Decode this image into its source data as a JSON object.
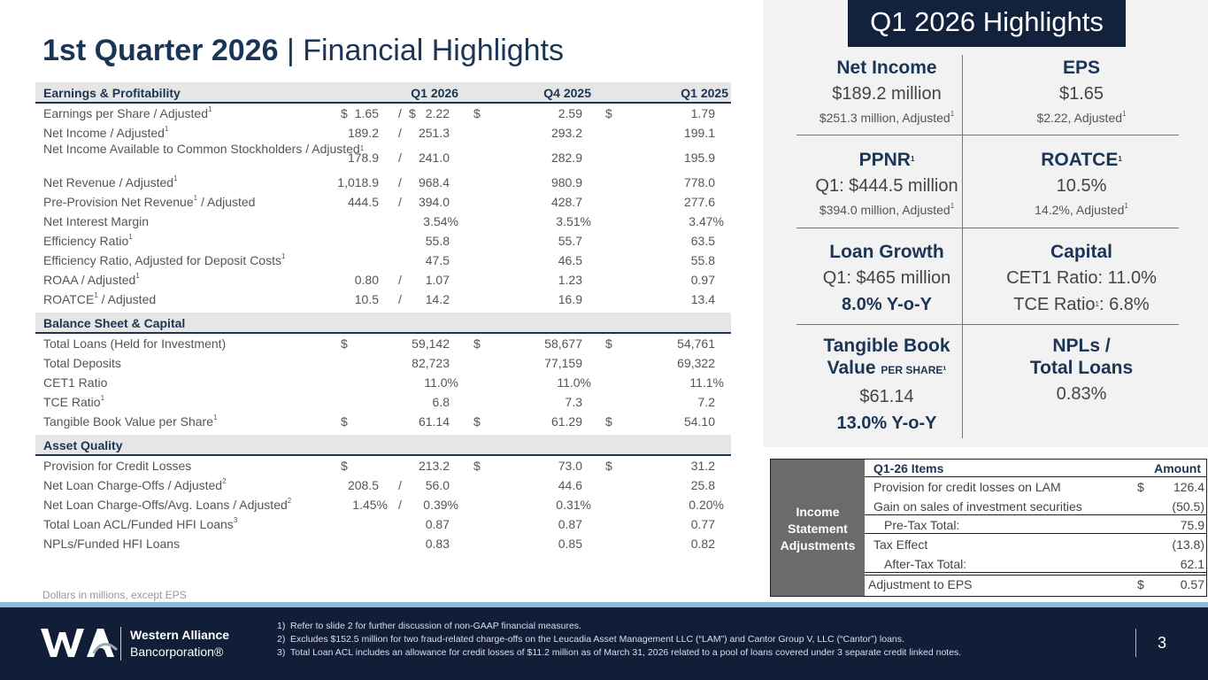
{
  "title": {
    "bold": "1st Quarter 2026",
    "rest": " | Financial Highlights"
  },
  "columns": [
    "Q1 2026",
    "Q4 2025",
    "Q1 2025"
  ],
  "sections": [
    {
      "name": "Earnings & Profitability",
      "rows": [
        {
          "label": "Earnings per Share / Adjusted",
          "sup": "1",
          "d1": "$",
          "v1": "1.65",
          "sl": "/",
          "d2": "$",
          "v2": "2.22",
          "d3": "$",
          "v3": "2.59",
          "d4": "$",
          "v4": "1.79"
        },
        {
          "label": "Net Income / Adjusted",
          "sup": "1",
          "v1": "189.2",
          "sl": "/",
          "v2": "251.3",
          "v3": "293.2",
          "v4": "199.1"
        },
        {
          "label": "Net Income Available to Common Stockholders / Adjusted",
          "sup": "1",
          "tall": true,
          "v1": "178.9",
          "sl": "/",
          "v2": "241.0",
          "v3": "282.9",
          "v4": "195.9"
        },
        {
          "label": "Net Revenue / Adjusted",
          "sup": "1",
          "v1": "1,018.9",
          "sl": "/",
          "v2": "968.4",
          "v3": "980.9",
          "v4": "778.0"
        },
        {
          "label": "Pre-Provision Net Revenue",
          "sup": "1",
          "label2": " / Adjusted",
          "v1": "444.5",
          "sl": "/",
          "v2": "394.0",
          "v3": "428.7",
          "v4": "277.6"
        },
        {
          "label": "Net Interest Margin",
          "v2": "3.54%",
          "v3": "3.51%",
          "v4": "3.47%"
        },
        {
          "label": "Efficiency Ratio",
          "sup": "1",
          "v2": "55.8",
          "v3": "55.7",
          "v4": "63.5"
        },
        {
          "label": "Efficiency Ratio, Adjusted for Deposit Costs",
          "sup": "1",
          "v2": "47.5",
          "v3": "46.5",
          "v4": "55.8"
        },
        {
          "label": "ROAA / Adjusted",
          "sup": "1",
          "v1": "0.80",
          "sl": "/",
          "v2": "1.07",
          "v3": "1.23",
          "v4": "0.97"
        },
        {
          "label": "ROATCE",
          "sup": "1",
          "label2": " / Adjusted",
          "v1": "10.5",
          "sl": "/",
          "v2": "14.2",
          "v3": "16.9",
          "v4": "13.4"
        }
      ]
    },
    {
      "name": "Balance Sheet & Capital",
      "rows": [
        {
          "label": "Total Loans (Held for Investment)",
          "d1": "$",
          "v2": "59,142",
          "d3": "$",
          "v3": "58,677",
          "d4": "$",
          "v4": "54,761"
        },
        {
          "label": "Total Deposits",
          "v2": "82,723",
          "v3": "77,159",
          "v4": "69,322"
        },
        {
          "label": "CET1 Ratio",
          "v2": "11.0%",
          "v3": "11.0%",
          "v4": "11.1%"
        },
        {
          "label": "TCE Ratio",
          "sup": "1",
          "v2": "6.8",
          "v3": "7.3",
          "v4": "7.2"
        },
        {
          "label": "Tangible Book Value per Share",
          "sup": "1",
          "d1": "$",
          "v2": "61.14",
          "d3": "$",
          "v3": "61.29",
          "d4": "$",
          "v4": "54.10"
        }
      ]
    },
    {
      "name": "Asset Quality",
      "rows": [
        {
          "label": "Provision for Credit Losses",
          "d1": "$",
          "v2": "213.2",
          "d3": "$",
          "v3": "73.0",
          "d4": "$",
          "v4": "31.2"
        },
        {
          "label": "Net Loan Charge-Offs / Adjusted",
          "sup": "2",
          "v1": "208.5",
          "sl": "/",
          "v2": "56.0",
          "v3": "44.6",
          "v4": "25.8"
        },
        {
          "label": "Net Loan Charge-Offs/Avg. Loans / Adjusted",
          "sup": "2",
          "v1": "1.45%",
          "sl": "/",
          "v2": "0.39%",
          "v3": "0.31%",
          "v4": "0.20%"
        },
        {
          "label": "Total Loan ACL/Funded HFI Loans",
          "sup": "3",
          "v2": "0.87",
          "v3": "0.87",
          "v4": "0.77"
        },
        {
          "label": "NPLs/Funded HFI Loans",
          "v2": "0.83",
          "v3": "0.85",
          "v4": "0.82"
        }
      ]
    }
  ],
  "note": "Dollars in millions, except EPS",
  "highlights": {
    "title": "Q1 2026 Highlights",
    "cells": [
      {
        "h": "Net Income",
        "b": "$189.2 million",
        "s": "$251.3 million, Adjusted",
        "ssup": "1"
      },
      {
        "h": "EPS",
        "b": "$1.65",
        "s": "$2.22, Adjusted",
        "ssup": "1"
      },
      {
        "h": "PPNR",
        "hsup": "1",
        "b": "Q1: $444.5 million",
        "s": "$394.0 million, Adjusted",
        "ssup": "1"
      },
      {
        "h": "ROATCE",
        "hsup": "1",
        "b": "10.5%",
        "s": "14.2%, Adjusted",
        "ssup": "1"
      },
      {
        "h": "Loan Growth",
        "b": "Q1: $465 million",
        "g": "8.0%  Y-o-Y"
      },
      {
        "h": "Capital",
        "b": "CET1 Ratio: 11.0%",
        "b2": "TCE Ratio",
        "b2sup": "1",
        "b2rest": ": 6.8%"
      },
      {
        "h": "Tangible Book",
        "h2": "Value ",
        "h2sm": "PER SHARE¹",
        "b": "$61.14",
        "g": "13.0%  Y-o-Y"
      },
      {
        "h": "NPLs /",
        "h2": "Total Loans",
        "b": "0.83%"
      }
    ]
  },
  "adjustments": {
    "side": "Income Statement Adjustments",
    "header": {
      "item": "Q1-26 Items",
      "amount": "Amount"
    },
    "rows": [
      {
        "item": "Provision for credit losses on LAM",
        "cur": "$",
        "amount": "126.4"
      },
      {
        "item": "Gain on sales of investment securities",
        "amount": "(50.5)"
      },
      {
        "item": "Pre-Tax Total:",
        "amount": "75.9"
      },
      {
        "item": "Tax Effect",
        "amount": "(13.8)"
      },
      {
        "item": "After-Tax Total:",
        "amount": "62.1"
      },
      {
        "item": "Adjustment to EPS",
        "cur": "$",
        "amount": "0.57"
      }
    ]
  },
  "footer": {
    "brand1": "Western Alliance",
    "brand2": "Bancorporation®",
    "footnotes": [
      {
        "n": "1)",
        "t": "Refer to slide 2 for further discussion of non-GAAP financial measures."
      },
      {
        "n": "2)",
        "t": "Excludes $152.5 million for two fraud-related charge-offs on the Leucadia Asset Management LLC (“LAM”) and Cantor Group V, LLC (“Cantor”) loans."
      },
      {
        "n": "3)",
        "t": "Total Loan ACL includes an allowance for credit losses of $11.2 million as of March 31, 2026 related to a pool of loans covered under 3 separate credit linked notes."
      }
    ],
    "page": "3"
  },
  "colors": {
    "navy": "#121e37",
    "title": "#1b3556",
    "strip": "#8fbcd9"
  }
}
